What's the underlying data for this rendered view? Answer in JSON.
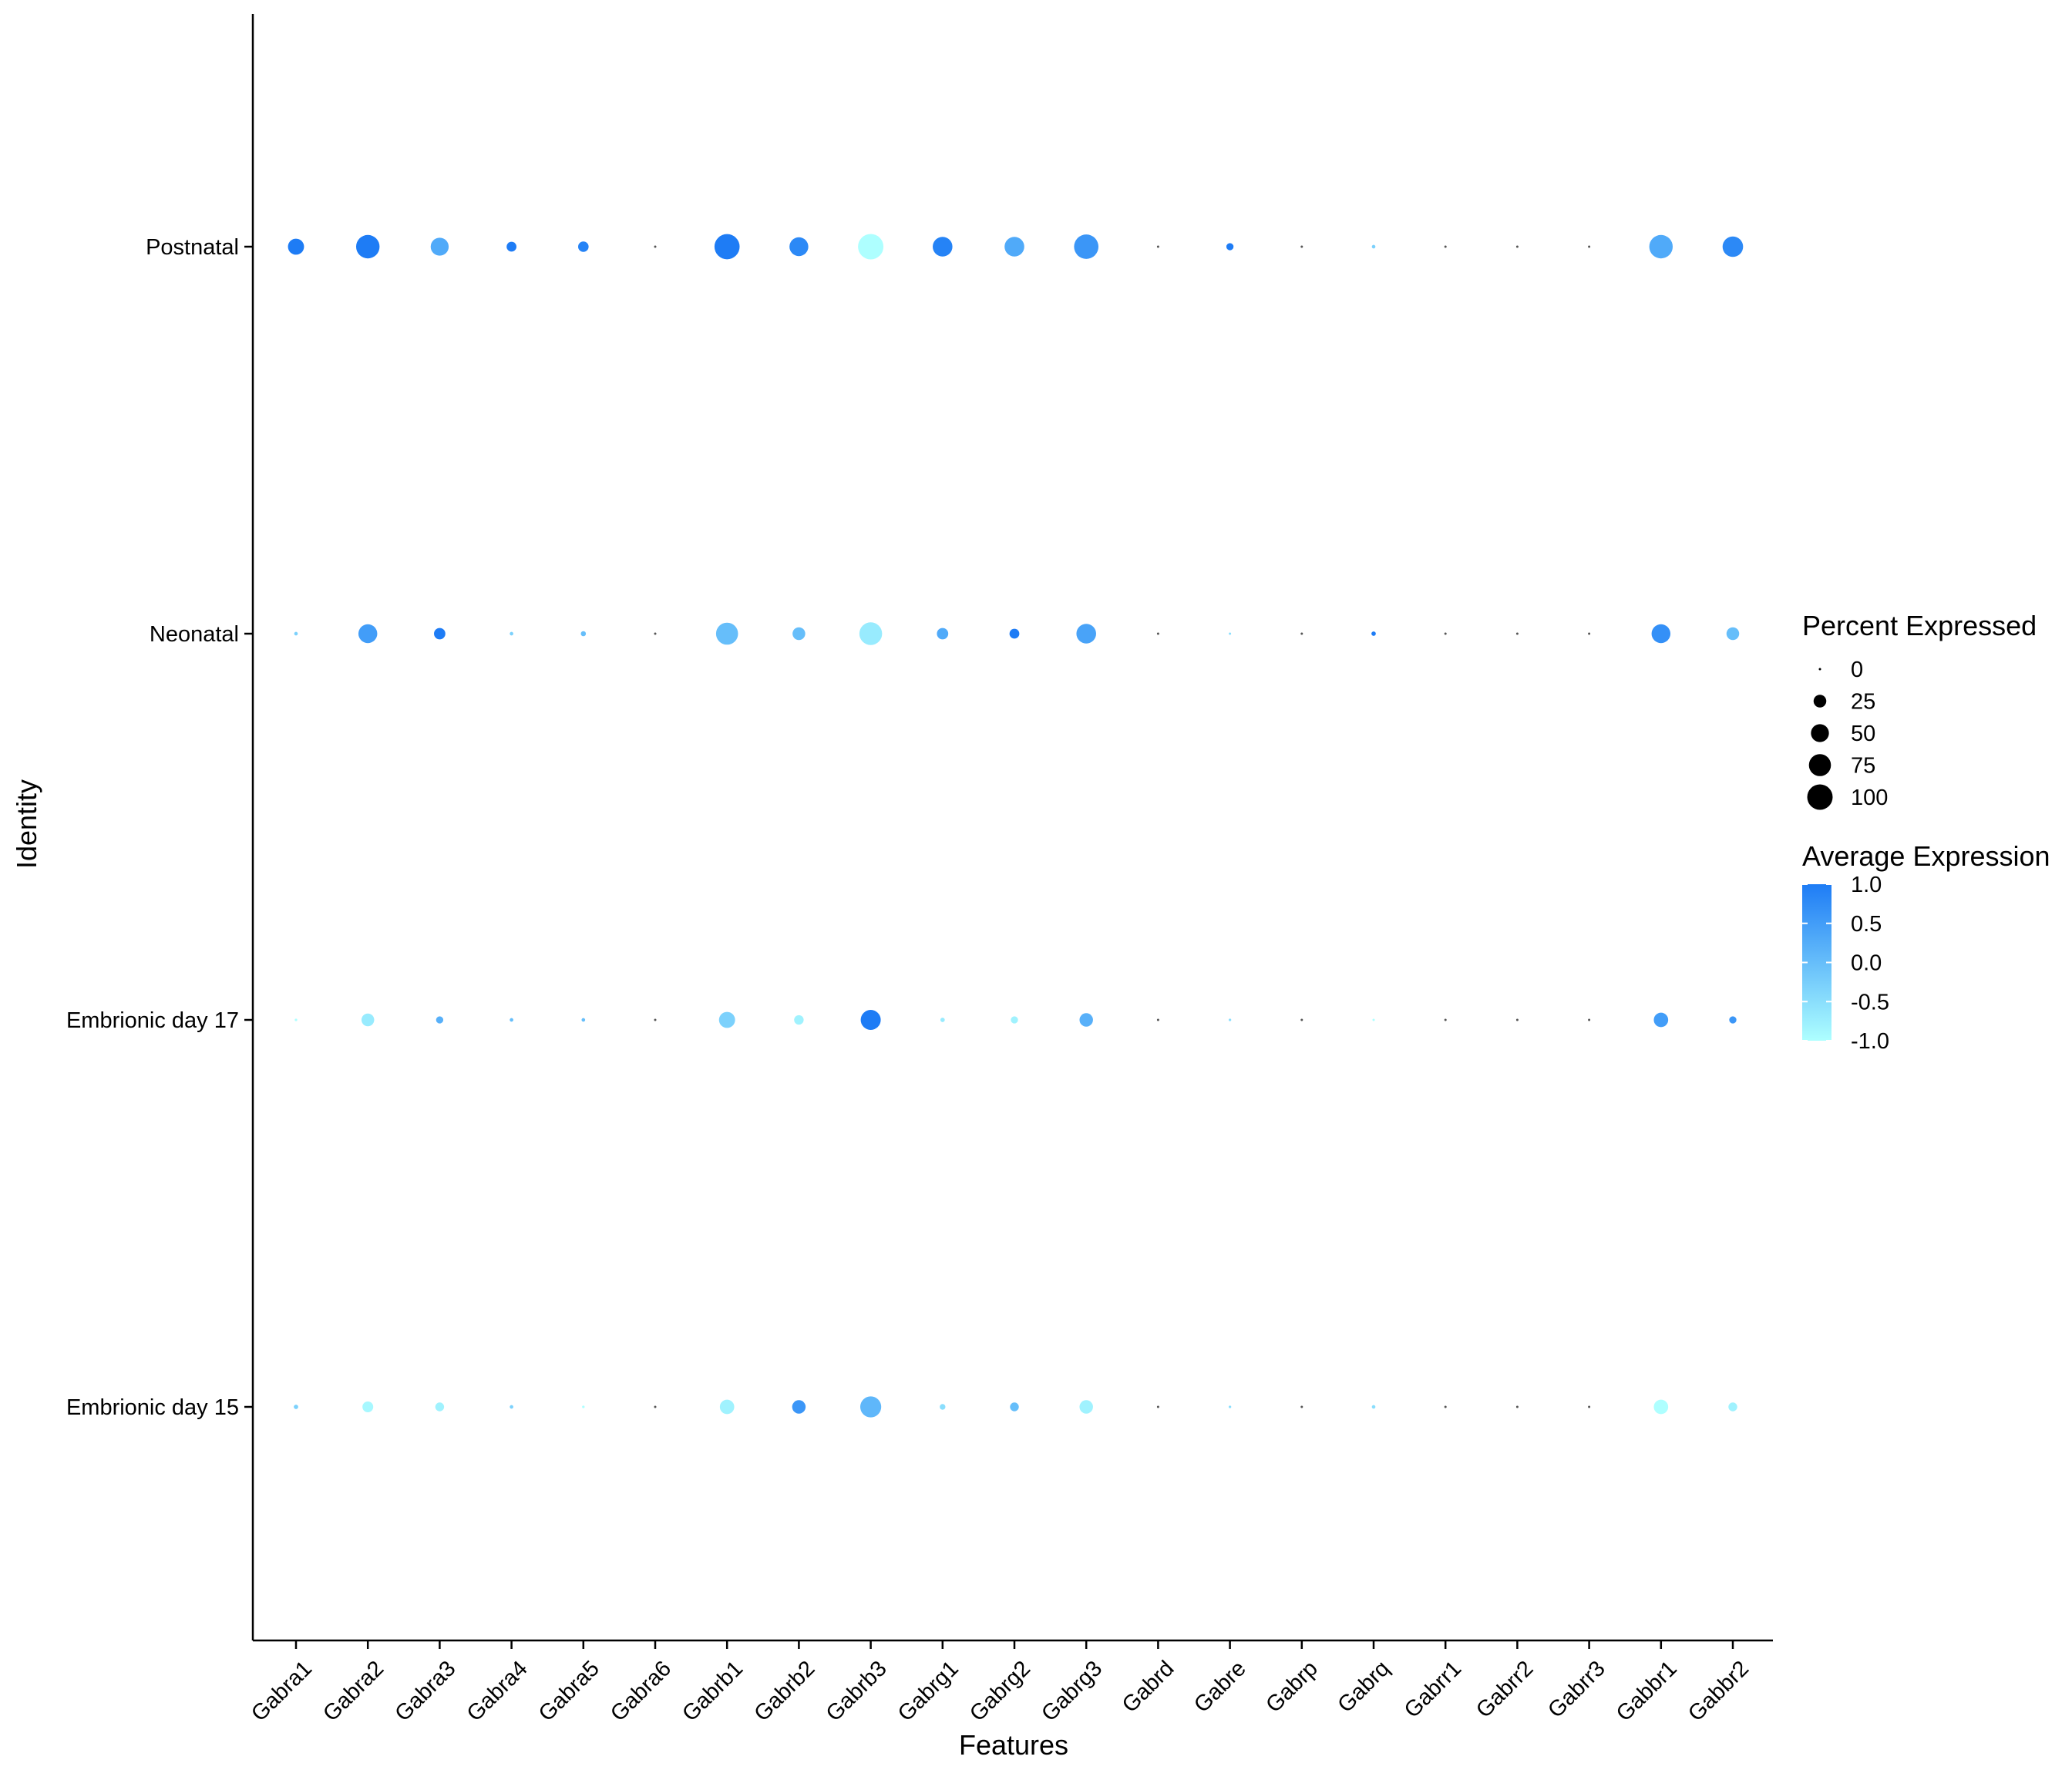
{
  "chart_data": {
    "type": "dotplot",
    "xlabel": "Features",
    "ylabel": "Identity",
    "features": [
      "Gabra1",
      "Gabra2",
      "Gabra3",
      "Gabra4",
      "Gabra5",
      "Gabra6",
      "Gabrb1",
      "Gabrb2",
      "Gabrb3",
      "Gabrg1",
      "Gabrg2",
      "Gabrg3",
      "Gabrd",
      "Gabre",
      "Gabrp",
      "Gabrq",
      "Gabrr1",
      "Gabrr2",
      "Gabrr3",
      "Gabbr1",
      "Gabbr2"
    ],
    "identities": [
      "Postnatal",
      "Neonatal",
      "Embrionic day 17",
      "Embrionic day 15"
    ],
    "percent_expressed": [
      [
        40,
        85,
        50,
        15,
        17,
        0,
        98,
        55,
        100,
        60,
        60,
        92,
        0,
        8,
        0,
        2,
        0,
        0,
        0,
        85,
        65
      ],
      [
        2,
        55,
        20,
        2,
        4,
        0,
        75,
        25,
        80,
        20,
        15,
        60,
        0,
        0,
        0,
        3,
        0,
        0,
        0,
        55,
        25
      ],
      [
        1,
        25,
        8,
        2,
        2,
        0,
        40,
        14,
        62,
        3,
        8,
        28,
        0,
        1,
        0,
        0,
        0,
        0,
        0,
        32,
        8
      ],
      [
        3,
        18,
        12,
        2,
        1,
        0,
        32,
        28,
        68,
        5,
        12,
        28,
        0,
        1,
        0,
        2,
        0,
        0,
        0,
        32,
        12
      ]
    ],
    "average_expression": [
      [
        1.0,
        1.0,
        0.3,
        1.0,
        0.9,
        null,
        1.0,
        0.8,
        -1.0,
        0.9,
        0.3,
        0.6,
        null,
        1.0,
        null,
        -0.3,
        null,
        null,
        null,
        0.3,
        0.8
      ],
      [
        -0.3,
        0.5,
        1.0,
        -0.3,
        0.0,
        null,
        0.0,
        0.0,
        -0.7,
        0.3,
        1.0,
        0.4,
        null,
        -0.5,
        null,
        1.0,
        null,
        null,
        null,
        0.7,
        0.0
      ],
      [
        -1.0,
        -0.7,
        0.2,
        0.0,
        0.0,
        null,
        -0.3,
        -0.8,
        1.0,
        -0.7,
        -0.8,
        0.2,
        null,
        -0.5,
        null,
        -1.0,
        null,
        null,
        null,
        0.5,
        0.6
      ],
      [
        -0.3,
        -0.9,
        -0.8,
        -0.3,
        -1.0,
        null,
        -0.8,
        0.6,
        0.1,
        -0.5,
        0.0,
        -0.8,
        null,
        -0.5,
        null,
        -0.5,
        null,
        null,
        null,
        -1.0,
        -0.8
      ]
    ],
    "size_legend": {
      "title": "Percent Expressed",
      "breaks": [
        0,
        25,
        50,
        75,
        100
      ],
      "labels": [
        "0",
        "25",
        "50",
        "75",
        "100"
      ]
    },
    "color_legend": {
      "title": "Average Expression",
      "breaks": [
        1.0,
        0.5,
        0.0,
        -0.5,
        -1.0
      ],
      "labels": [
        "1.0",
        "0.5",
        "0.0",
        "-0.5",
        "-1.0"
      ],
      "low_color": "#AEFFFF",
      "high_color": "#1E7CF5"
    },
    "missing_color": "#555555",
    "grid": false
  }
}
